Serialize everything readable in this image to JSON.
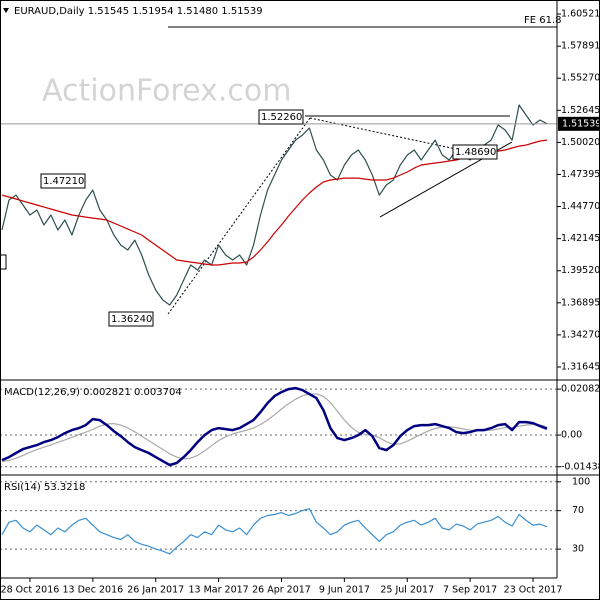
{
  "chart_data": [
    {
      "type": "line",
      "title": "EURAUD,Daily  1.51545 1.51954 1.51480 1.51539",
      "watermark": "ActionForex.com",
      "last_label": "1.51539",
      "annotations": [
        "1.52260",
        "1.47210",
        "1.36240",
        "1.48690",
        "FE 61.8",
        "0"
      ],
      "ylim": [
        1.3058,
        1.6167
      ],
      "yticks": [
        1.60521,
        1.57891,
        {
          "value": 1.5527,
          "label": "1.55270"
        },
        1.52645,
        {
          "value": 1.5002,
          "label": "1.50020"
        },
        1.47395,
        {
          "value": 1.4477,
          "label": "1.44770"
        },
        1.42145,
        {
          "value": 1.3952,
          "label": "1.39520"
        },
        1.36895,
        {
          "value": 1.3427,
          "label": "1.34270"
        },
        1.31645
      ],
      "series": [
        {
          "color": "#2f4f4f",
          "values": [
            1.4285,
            1.4531,
            1.4571,
            1.449,
            1.4408,
            1.4449,
            1.4326,
            1.4408,
            1.4285,
            1.4367,
            1.4244,
            1.4408,
            1.4531,
            1.4612,
            1.4449,
            1.4367,
            1.4244,
            1.4162,
            1.4122,
            1.4203,
            1.4081,
            1.3917,
            1.3794,
            1.3713,
            1.3672,
            1.3753,
            1.3876,
            1.3999,
            1.3958,
            1.404,
            1.3999,
            1.4162,
            1.4081,
            1.404,
            1.4081,
            1.3999,
            1.4162,
            1.4408,
            1.4612,
            1.4735,
            1.4858,
            1.494,
            1.5021,
            1.5062,
            1.5119,
            1.494,
            1.4858,
            1.4735,
            1.4694,
            1.4817,
            1.4899,
            1.494,
            1.4858,
            1.4735,
            1.4571,
            1.4653,
            1.4694,
            1.4817,
            1.4899,
            1.494,
            1.4858,
            1.494,
            1.5021,
            1.4899,
            1.4858,
            1.494,
            1.4899,
            1.4858,
            1.494,
            1.498,
            1.5021,
            1.5144,
            1.5103,
            1.5021,
            1.5308,
            1.5226,
            1.5144,
            1.5185,
            1.5154
          ]
        },
        {
          "color": "#cc0000",
          "values": [
            1.4571,
            1.4555,
            1.4539,
            1.4522,
            1.4506,
            1.449,
            1.4473,
            1.4457,
            1.4441,
            1.4424,
            1.4408,
            1.44,
            1.4391,
            1.4383,
            1.4375,
            1.4367,
            1.4342,
            1.4318,
            1.4293,
            1.4269,
            1.4244,
            1.4203,
            1.4162,
            1.4122,
            1.4081,
            1.404,
            1.4032,
            1.4023,
            1.4015,
            1.4007,
            1.3999,
            1.3999,
            1.4007,
            1.4015,
            1.4015,
            1.4023,
            1.4064,
            1.4122,
            1.4187,
            1.4261,
            1.4326,
            1.44,
            1.4465,
            1.4531,
            1.4588,
            1.4637,
            1.4678,
            1.4694,
            1.4702,
            1.471,
            1.471,
            1.471,
            1.4702,
            1.4694,
            1.4694,
            1.4694,
            1.471,
            1.4735,
            1.476,
            1.4792,
            1.4817,
            1.4825,
            1.4833,
            1.4841,
            1.485,
            1.4858,
            1.4874,
            1.4882,
            1.4899,
            1.4907,
            1.4923,
            1.4931,
            1.494,
            1.4956,
            1.4972,
            1.498,
            1.4997,
            1.5013,
            1.5021
          ]
        }
      ]
    },
    {
      "type": "line",
      "title": "MACD(12,26,9) 0.002821 0.003704",
      "ylim": [
        -0.0181,
        0.0245
      ],
      "yticks": [
        0.020827,
        {
          "value": 0,
          "label": "0.00"
        },
        -0.014386
      ],
      "series": [
        {
          "color": "#aaaaaa",
          "values": [
            -0.012,
            -0.0115,
            -0.0105,
            -0.0092,
            -0.0078,
            -0.0066,
            -0.0055,
            -0.0044,
            -0.0033,
            -0.0022,
            -0.001,
            0.0002,
            0.0013,
            0.0025,
            0.004,
            0.005,
            0.0052,
            0.0045,
            0.0032,
            0.0015,
            -0.0005,
            -0.0025,
            -0.0045,
            -0.0065,
            -0.0085,
            -0.01,
            -0.0108,
            -0.0105,
            -0.0092,
            -0.0072,
            -0.0048,
            -0.0025,
            -0.0008,
            0.0005,
            0.0014,
            0.0022,
            0.0032,
            0.0048,
            0.0068,
            0.0092,
            0.0118,
            0.0142,
            0.0162,
            0.0178,
            0.0186,
            0.0187,
            0.0175,
            0.0148,
            0.0108,
            0.0068,
            0.0035,
            0.0012,
            0.0002,
            0.0,
            -0.0012,
            -0.003,
            -0.0042,
            -0.004,
            -0.0028,
            -0.0012,
            0.0004,
            0.0018,
            0.003,
            0.0036,
            0.0038,
            0.0034,
            0.0028,
            0.0022,
            0.002,
            0.002,
            0.0022,
            0.0027,
            0.0034,
            0.0034,
            0.004,
            0.0045,
            0.0048,
            0.0046,
            0.0037
          ]
        },
        {
          "color": "#000080",
          "values": [
            -0.01133,
            -0.00997,
            -0.00815,
            -0.00634,
            -0.00544,
            -0.00453,
            -0.00317,
            -0.00227,
            -0.00091,
            0.00091,
            0.00227,
            0.00317,
            0.00453,
            0.00725,
            0.0068,
            0.00453,
            0.00181,
            -0.00045,
            -0.00317,
            -0.00544,
            -0.0068,
            -0.00815,
            -0.00997,
            -0.01178,
            -0.01359,
            -0.01268,
            -0.00997,
            -0.0068,
            -0.00317,
            0,
            0.00227,
            0.00317,
            0.00272,
            0.00227,
            0.00317,
            0.00498,
            0.0068,
            0.01042,
            0.0145,
            0.01767,
            0.01948,
            0.02084,
            0.02129,
            0.02039,
            0.01857,
            0.01676,
            0.01133,
            0.00317,
            -0.00136,
            -0.00227,
            -0.00136,
            0,
            0.00227,
            -0.00045,
            -0.00589,
            -0.0068,
            -0.00453,
            -0.00045,
            0.00227,
            0.00408,
            0.00453,
            0.00453,
            0.00498,
            0.00408,
            0.00317,
            0.00136,
            0.00091,
            0.00136,
            0.00227,
            0.00227,
            0.00317,
            0.00453,
            0.00498,
            0.00227,
            0.00589,
            0.00589,
            0.00544,
            0.00408,
            0.00282
          ]
        }
      ]
    },
    {
      "type": "line",
      "title": "RSI(14) 53.3218",
      "ylim": [
        0,
        106
      ],
      "yticks": [
        100,
        70,
        30
      ],
      "categories": [
        null,
        null,
        null,
        null,
        "28 Oct 2016",
        null,
        null,
        null,
        null,
        null,
        null,
        null,
        null,
        "13 Dec 2016",
        null,
        null,
        null,
        null,
        null,
        null,
        null,
        null,
        "26 Jan 2017",
        null,
        null,
        null,
        null,
        null,
        null,
        null,
        null,
        "13 Mar 2017",
        null,
        null,
        null,
        null,
        null,
        null,
        null,
        null,
        "26 Apr 2017",
        null,
        null,
        null,
        null,
        null,
        null,
        null,
        null,
        "9 Jun 2017",
        null,
        null,
        null,
        null,
        null,
        null,
        null,
        null,
        "25 Jul 2017",
        null,
        null,
        null,
        null,
        null,
        null,
        null,
        null,
        "7 Sep 2017",
        null,
        null,
        null,
        null,
        null,
        null,
        null,
        null,
        "23 Oct 2017",
        null,
        null
      ],
      "series": [
        {
          "color": "#3a8fd0",
          "values": [
            45,
            58,
            60,
            52,
            48,
            55,
            50,
            45,
            52,
            48,
            55,
            60,
            62,
            55,
            48,
            45,
            42,
            40,
            45,
            38,
            35,
            33,
            30,
            28,
            25,
            32,
            38,
            45,
            42,
            48,
            45,
            55,
            50,
            48,
            52,
            45,
            55,
            62,
            65,
            66,
            68,
            65,
            67,
            70,
            72,
            58,
            52,
            45,
            48,
            55,
            58,
            60,
            52,
            45,
            38,
            45,
            48,
            55,
            58,
            60,
            55,
            58,
            62,
            52,
            50,
            56,
            54,
            50,
            56,
            58,
            60,
            64,
            58,
            54,
            66,
            60,
            55,
            56,
            53.32
          ]
        }
      ]
    }
  ]
}
